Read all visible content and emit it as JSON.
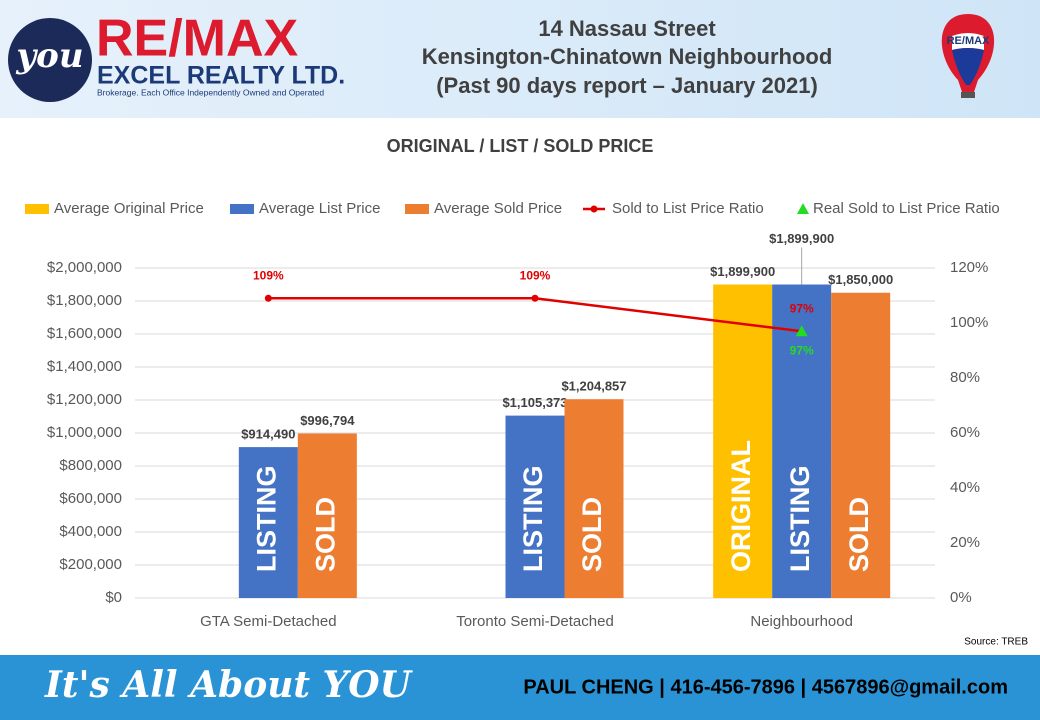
{
  "header": {
    "logo_badge": "you",
    "brand": "RE/MAX",
    "brand_sub": "EXCEL REALTY LTD.",
    "brand_note": "Brokerage. Each Office Independently Owned and Operated",
    "title_lines": [
      "14 Nassau Street",
      "Kensington-Chinatown Neighbourhood",
      "(Past 90 days report – January 2021)"
    ],
    "balloon_text": "RE/MAX"
  },
  "chart_data": {
    "type": "bar",
    "title": "ORIGINAL / LIST / SOLD PRICE",
    "categories": [
      "GTA  Semi-Detached",
      "Toronto Semi-Detached",
      "Neighbourhood"
    ],
    "series": [
      {
        "name": "Average Original Price",
        "color": "#ffc000",
        "values": [
          null,
          null,
          1899900
        ],
        "value_labels": [
          null,
          null,
          "$1,899,900"
        ],
        "bar_labels": [
          null,
          null,
          "ORIGINAL"
        ]
      },
      {
        "name": "Average List Price",
        "color": "#4472c4",
        "values": [
          914490,
          1105373,
          1899900
        ],
        "value_labels": [
          "$914,490",
          "$1,105,373",
          "$1,899,900"
        ],
        "bar_labels": [
          "LISTING",
          "LISTING",
          "LISTING"
        ]
      },
      {
        "name": "Average Sold Price",
        "color": "#ed7d31",
        "values": [
          996794,
          1204857,
          1850000
        ],
        "value_labels": [
          "$996,794",
          "$1,204,857",
          "$1,850,000"
        ],
        "bar_labels": [
          "SOLD",
          "SOLD",
          "SOLD"
        ]
      },
      {
        "name": "Sold to List Price Ratio",
        "type": "line",
        "axis": "y2",
        "color": "#e00000",
        "values": [
          109,
          109,
          97
        ],
        "value_labels": [
          "109%",
          "109%",
          "97%"
        ]
      },
      {
        "name": "Real Sold to List Price Ratio",
        "type": "scatter",
        "axis": "y2",
        "color": "#22dd22",
        "values": [
          null,
          null,
          97
        ],
        "value_labels": [
          null,
          null,
          "97%"
        ]
      }
    ],
    "ylim": [
      0,
      2000000
    ],
    "yticks": [
      {
        "value": 0,
        "label": "$0"
      },
      {
        "value": 200000,
        "label": "$200,000"
      },
      {
        "value": 400000,
        "label": "$400,000"
      },
      {
        "value": 600000,
        "label": "$600,000"
      },
      {
        "value": 800000,
        "label": "$800,000"
      },
      {
        "value": 1000000,
        "label": "$1,000,000"
      },
      {
        "value": 1200000,
        "label": "$1,200,000"
      },
      {
        "value": 1400000,
        "label": "$1,400,000"
      },
      {
        "value": 1600000,
        "label": "$1,600,000"
      },
      {
        "value": 1800000,
        "label": "$1,800,000"
      },
      {
        "value": 2000000,
        "label": "$2,000,000"
      }
    ],
    "y2lim": [
      0,
      120
    ],
    "y2ticks": [
      {
        "value": 0,
        "label": "0%"
      },
      {
        "value": 20,
        "label": "20%"
      },
      {
        "value": 40,
        "label": "40%"
      },
      {
        "value": 60,
        "label": "60%"
      },
      {
        "value": 80,
        "label": "80%"
      },
      {
        "value": 100,
        "label": "100%"
      },
      {
        "value": 120,
        "label": "120%"
      }
    ],
    "grid": true,
    "legend": "top",
    "source": "Source: TREB"
  },
  "footer": {
    "slogan": "It's All About YOU",
    "contact": "PAUL CHENG | 416-456-7896 | 4567896@gmail.com"
  }
}
